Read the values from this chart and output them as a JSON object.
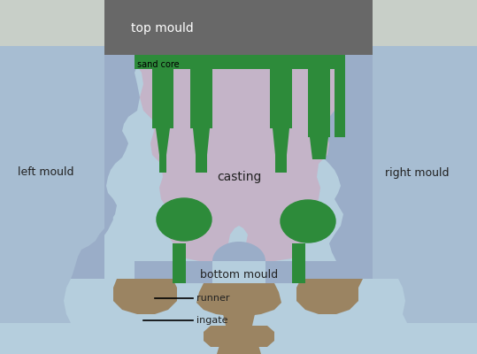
{
  "bg_color": "#b5cedd",
  "top_mould_color": "#686868",
  "top_mould_bg": "#c8cfc8",
  "mould_body_color": "#9aadc8",
  "casting_color": "#c4b4c8",
  "green_color": "#2d8b3a",
  "brown_color": "#9b8462",
  "dark_shadow": "#7a8eaa",
  "text_color": "#222222",
  "top_mould_label": "top mould",
  "sand_core_label": "sand core",
  "casting_label": "casting",
  "left_mould_label": "left mould",
  "right_mould_label": "right mould",
  "bottom_mould_label": "bottom mould",
  "runner_label": "runner",
  "ingate_label": "ingate",
  "font_size": 9,
  "figsize": [
    5.39,
    4.0
  ],
  "dpi": 100
}
